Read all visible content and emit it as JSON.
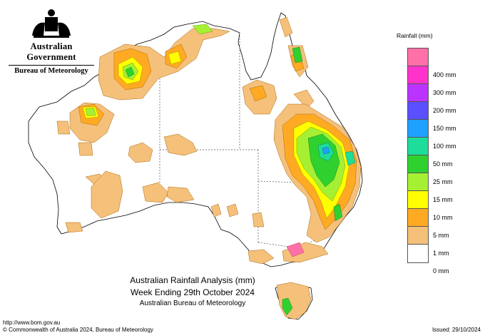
{
  "header": {
    "government": "Australian Government",
    "bureau": "Bureau of Meteorology"
  },
  "map": {
    "title_line1": "Australian Rainfall Analysis (mm)",
    "title_line2": "Week Ending 29th October 2024",
    "title_line3": "Australian Bureau of Meteorology"
  },
  "legend": {
    "title": "Rainfall (mm)",
    "items": [
      {
        "label": "",
        "color": "#ff6fa8"
      },
      {
        "label": "400 mm",
        "color": "#ff33cc"
      },
      {
        "label": "300 mm",
        "color": "#bb33ff"
      },
      {
        "label": "200 mm",
        "color": "#5a50ff"
      },
      {
        "label": "150 mm",
        "color": "#1ea0ff"
      },
      {
        "label": "100 mm",
        "color": "#1edc9a"
      },
      {
        "label": "50 mm",
        "color": "#2fd12f"
      },
      {
        "label": "25 mm",
        "color": "#a6f033"
      },
      {
        "label": "15 mm",
        "color": "#ffff00"
      },
      {
        "label": "10 mm",
        "color": "#ffaa22"
      },
      {
        "label": "5 mm",
        "color": "#f5c07a"
      },
      {
        "label": "1 mm",
        "color": "#ffffff"
      },
      {
        "label": "0 mm",
        "color": ""
      }
    ]
  },
  "footer": {
    "url": "http://www.bom.gov.au",
    "copyright": "© Commonwealth of Australia 2024, Bureau of Meteorology",
    "issued": "Issued: 29/10/2024"
  }
}
